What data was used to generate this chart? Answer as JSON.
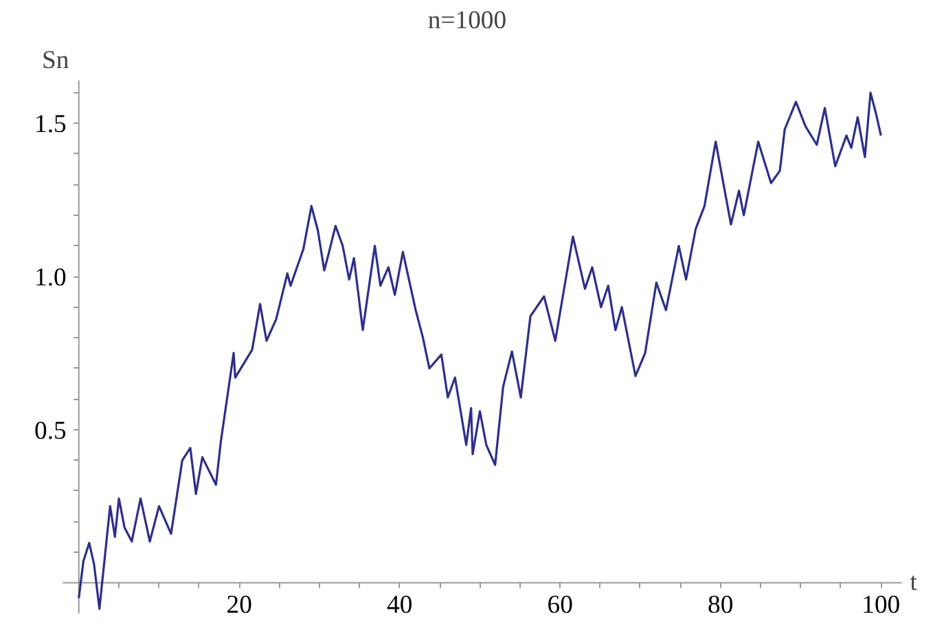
{
  "chart_data": {
    "type": "line",
    "title": "n=1000",
    "xlabel": "t",
    "ylabel": "Sn",
    "x": [
      0,
      0.57,
      1.3,
      1.9,
      2.57,
      3.9,
      4.5,
      5.0,
      5.7,
      6.6,
      7.7,
      8.85,
      10.0,
      11.5,
      12.9,
      13.9,
      14.6,
      15.4,
      17.1,
      17.7,
      19.3,
      19.5,
      21.6,
      22.6,
      23.4,
      24.6,
      26.0,
      26.4,
      28.0,
      29.0,
      29.8,
      30.6,
      31.1,
      32.0,
      32.9,
      33.7,
      34.3,
      35.4,
      36.9,
      37.6,
      38.6,
      39.4,
      40.4,
      42.0,
      42.9,
      43.7,
      45.2,
      46.0,
      46.9,
      48.3,
      48.9,
      49.1,
      50.0,
      50.8,
      51.9,
      52.9,
      54.0,
      55.1,
      56.3,
      58.0,
      59.4,
      61.6,
      63.1,
      64.0,
      65.1,
      66.0,
      66.9,
      67.7,
      69.4,
      70.6,
      72.0,
      73.2,
      74.8,
      75.7,
      76.9,
      78.0,
      79.4,
      81.3,
      82.3,
      82.9,
      84.7,
      86.3,
      87.4,
      88.0,
      89.4,
      90.6,
      92.0,
      93.0,
      94.3,
      95.7,
      96.3,
      97.1,
      98.0,
      98.7,
      99.4,
      100
    ],
    "series": [
      {
        "color": "#2e2e8c",
        "values": [
          -0.05,
          0.07,
          0.13,
          0.06,
          -0.085,
          0.25,
          0.15,
          0.275,
          0.18,
          0.135,
          0.275,
          0.135,
          0.25,
          0.16,
          0.4,
          0.44,
          0.29,
          0.41,
          0.32,
          0.46,
          0.75,
          0.67,
          0.76,
          0.91,
          0.79,
          0.86,
          1.01,
          0.97,
          1.09,
          1.23,
          1.15,
          1.02,
          1.07,
          1.165,
          1.1,
          0.99,
          1.06,
          0.825,
          1.1,
          0.97,
          1.03,
          0.94,
          1.08,
          0.89,
          0.8,
          0.7,
          0.745,
          0.605,
          0.67,
          0.45,
          0.57,
          0.42,
          0.56,
          0.45,
          0.385,
          0.64,
          0.755,
          0.605,
          0.87,
          0.935,
          0.79,
          1.13,
          0.96,
          1.03,
          0.9,
          0.97,
          0.825,
          0.9,
          0.675,
          0.75,
          0.98,
          0.89,
          1.1,
          0.99,
          1.155,
          1.23,
          1.44,
          1.17,
          1.28,
          1.2,
          1.44,
          1.305,
          1.345,
          1.48,
          1.57,
          1.49,
          1.43,
          1.55,
          1.36,
          1.46,
          1.42,
          1.52,
          1.39,
          1.6,
          1.53,
          1.46
        ]
      }
    ],
    "xlim": [
      -2,
      102.6
    ],
    "ylim": [
      -0.1,
      1.64
    ],
    "xticks": [
      {
        "value": 5,
        "label": null
      },
      {
        "value": 10,
        "label": null
      },
      {
        "value": 15,
        "label": null
      },
      20,
      {
        "value": 25,
        "label": null
      },
      {
        "value": 30,
        "label": null
      },
      {
        "value": 35,
        "label": null
      },
      40,
      {
        "value": 45,
        "label": null
      },
      {
        "value": 50,
        "label": null
      },
      {
        "value": 55,
        "label": null
      },
      60,
      {
        "value": 65,
        "label": null
      },
      {
        "value": 70,
        "label": null
      },
      {
        "value": 75,
        "label": null
      },
      80,
      {
        "value": 85,
        "label": null
      },
      {
        "value": 90,
        "label": null
      },
      {
        "value": 95,
        "label": null
      },
      100
    ],
    "yticks": [
      {
        "value": 0.1,
        "label": null
      },
      {
        "value": 0.2,
        "label": null
      },
      {
        "value": 0.3,
        "label": null
      },
      {
        "value": 0.4,
        "label": null
      },
      0.5,
      {
        "value": 0.6,
        "label": null
      },
      {
        "value": 0.7,
        "label": null
      },
      {
        "value": 0.8,
        "label": null
      },
      {
        "value": 0.9,
        "label": null
      },
      {
        "value": 1,
        "label": "1.0"
      },
      {
        "value": 1.1,
        "label": null
      },
      {
        "value": 1.2,
        "label": null
      },
      {
        "value": 1.3,
        "label": null
      },
      {
        "value": 1.4,
        "label": null
      },
      1.5,
      {
        "value": 1.6,
        "label": null
      }
    ],
    "grid": false,
    "marker": "none",
    "line_style": "solid"
  }
}
